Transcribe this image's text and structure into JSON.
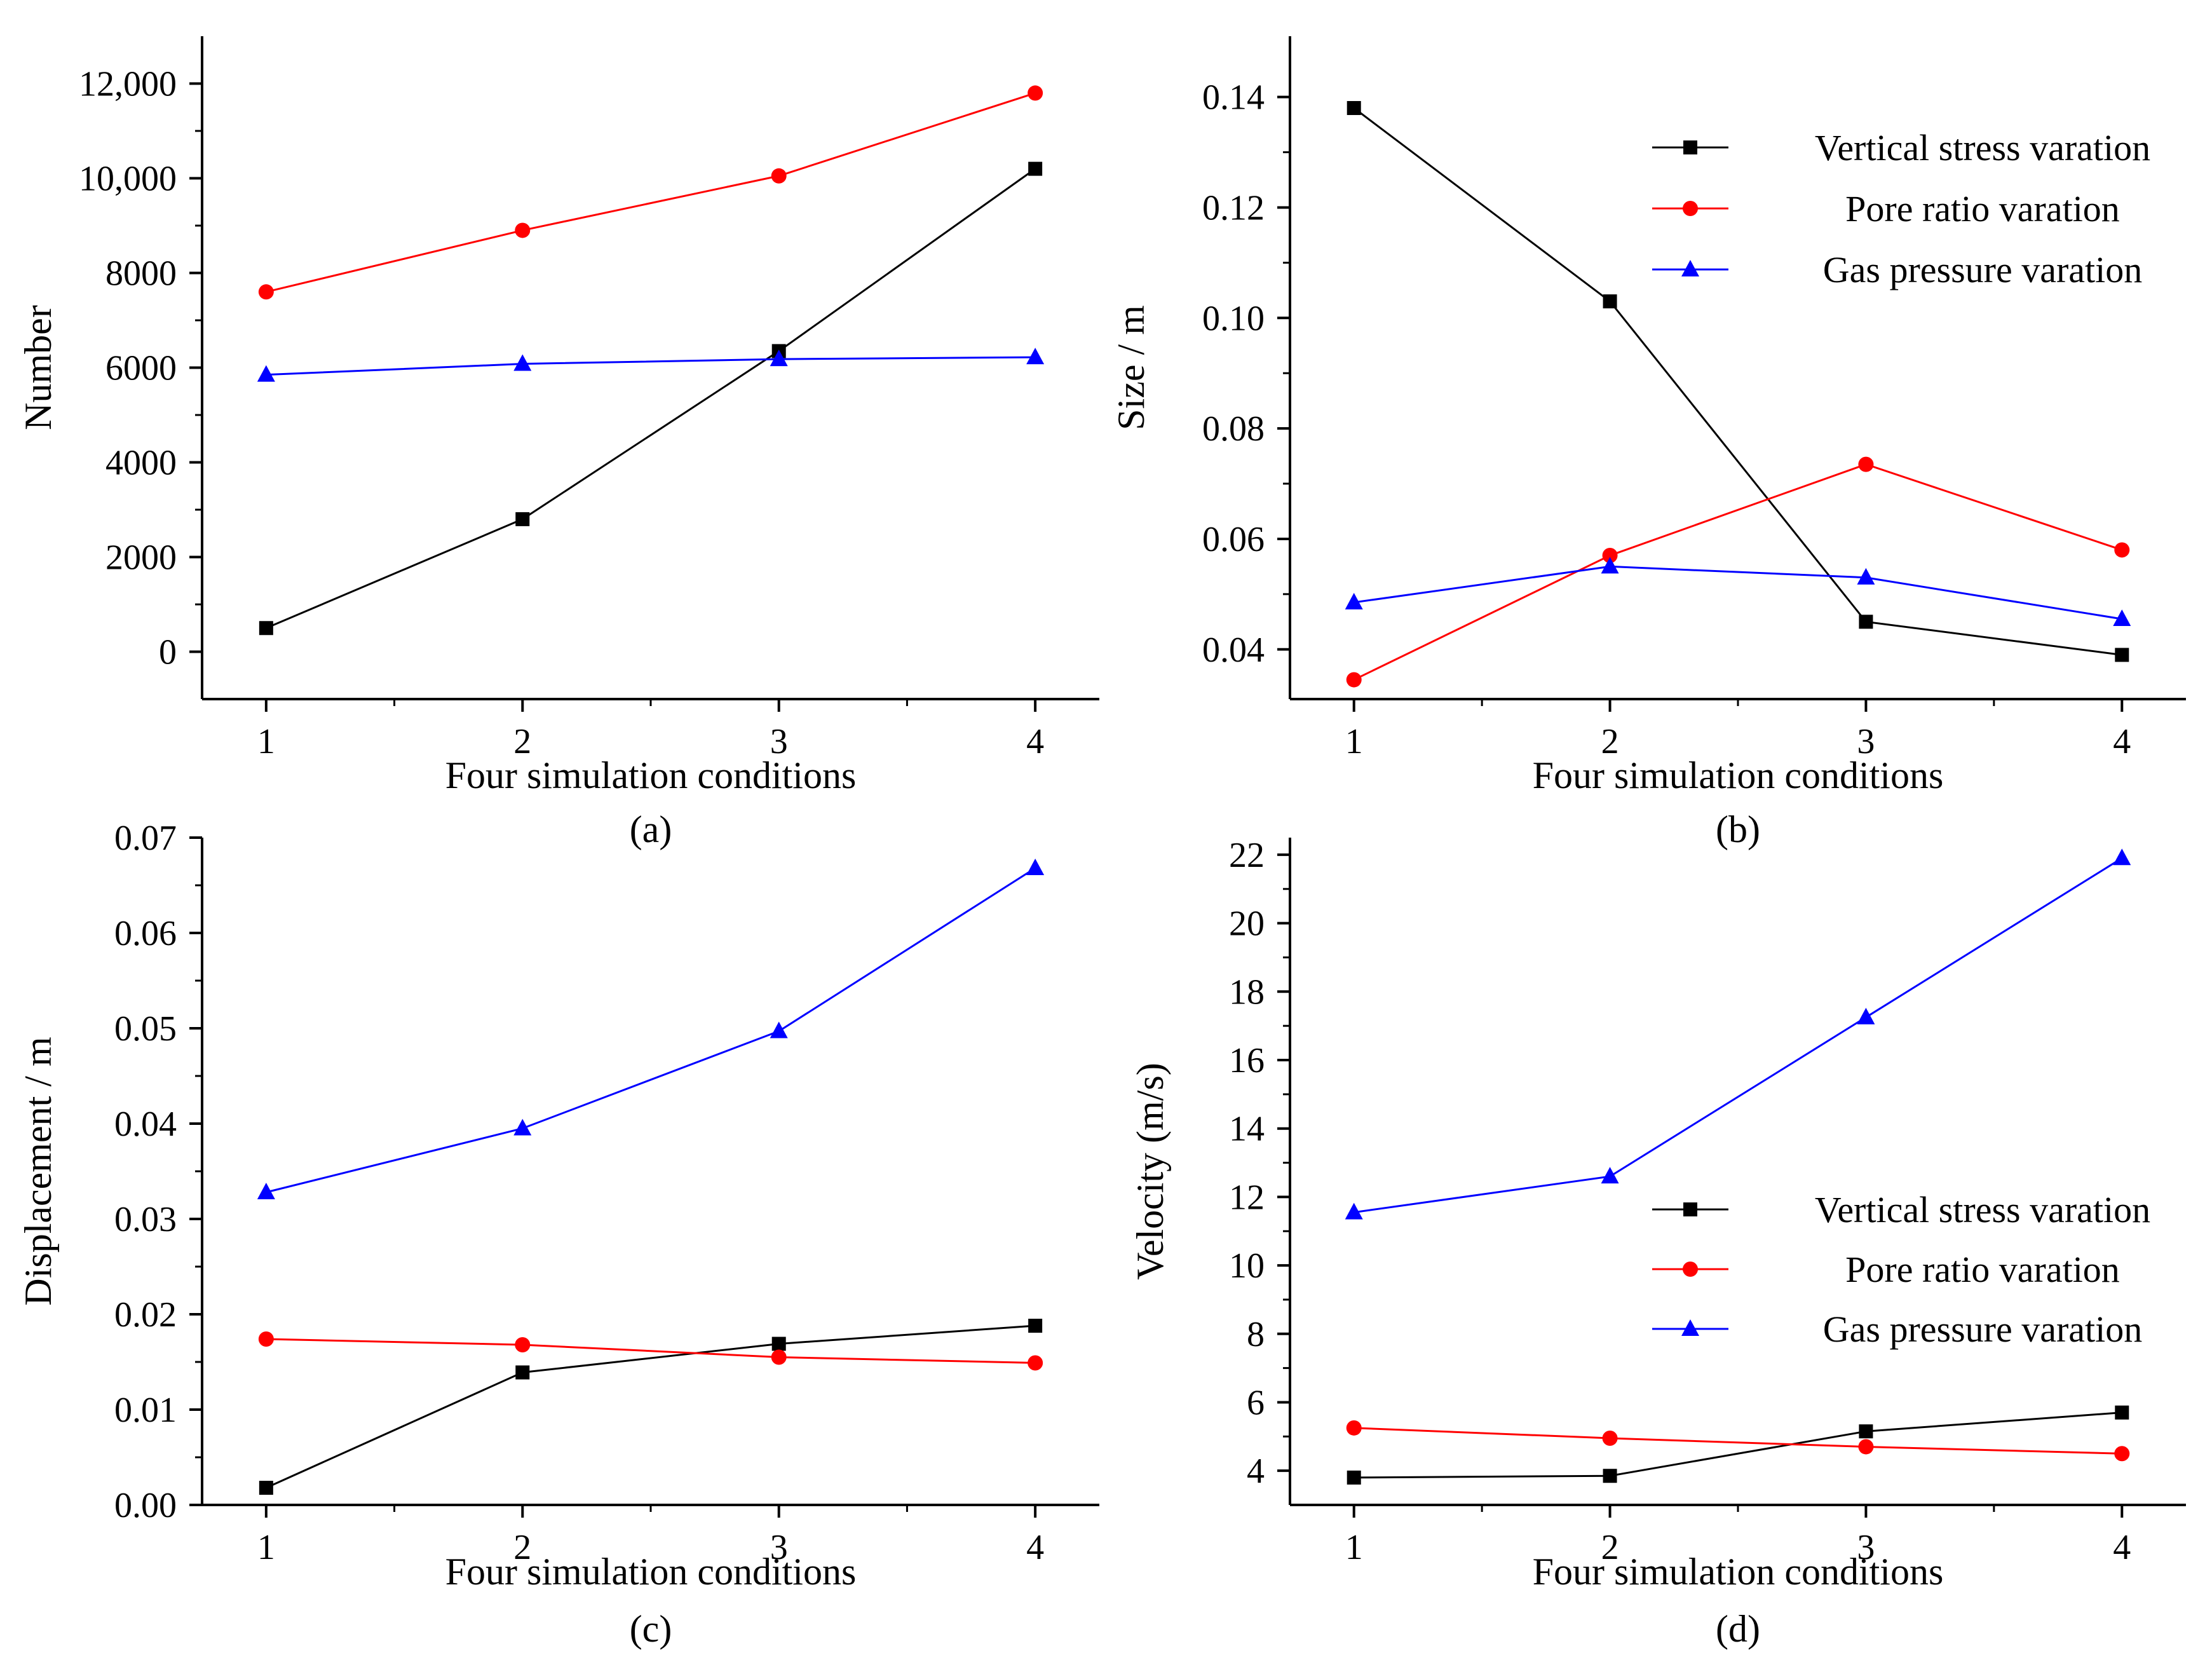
{
  "colors": {
    "series": [
      "#000000",
      "#ff0000",
      "#0000ff"
    ],
    "axis": "#000000",
    "background": "#ffffff"
  },
  "chart_data": [
    {
      "id": "a",
      "type": "line",
      "panel_label": "(a)",
      "title": "",
      "xlabel": "Four simulation conditions",
      "ylabel": "Number",
      "x": [
        1,
        2,
        3,
        4
      ],
      "xticks": [
        "1",
        "2",
        "3",
        "4"
      ],
      "xlim": [
        0.75,
        4.25
      ],
      "ylim": [
        -1000,
        13000
      ],
      "yticks": [
        0,
        2000,
        4000,
        6000,
        8000,
        10000,
        12000
      ],
      "ytick_labels": [
        "0",
        "2000",
        "4000",
        "6000",
        "8000",
        "10,000",
        "12,000"
      ],
      "grid": false,
      "legend": null,
      "series": [
        {
          "marker": "square",
          "color": "#000000",
          "values": [
            500,
            2800,
            6350,
            10200
          ]
        },
        {
          "marker": "circle",
          "color": "#ff0000",
          "values": [
            7600,
            8900,
            10050,
            11800
          ]
        },
        {
          "marker": "triangle",
          "color": "#0000ff",
          "values": [
            5850,
            6080,
            6180,
            6220
          ]
        }
      ]
    },
    {
      "id": "b",
      "type": "line",
      "panel_label": "(b)",
      "title": "",
      "xlabel": "Four simulation conditions",
      "ylabel": "Size / m",
      "x": [
        1,
        2,
        3,
        4
      ],
      "xticks": [
        "1",
        "2",
        "3",
        "4"
      ],
      "xlim": [
        0.75,
        4.25
      ],
      "ylim": [
        0.031,
        0.151
      ],
      "yticks": [
        0.04,
        0.06,
        0.08,
        0.1,
        0.12,
        0.14
      ],
      "ytick_labels": [
        "0.04",
        "0.06",
        "0.08",
        "0.10",
        "0.12",
        "0.14"
      ],
      "grid": false,
      "legend": "top-right",
      "series": [
        {
          "name": "Vertical stress varation",
          "marker": "square",
          "color": "#000000",
          "values": [
            0.138,
            0.103,
            0.045,
            0.039
          ]
        },
        {
          "name": "Pore ratio varation",
          "marker": "circle",
          "color": "#ff0000",
          "values": [
            0.0345,
            0.057,
            0.0735,
            0.058
          ]
        },
        {
          "name": "Gas pressure varation",
          "marker": "triangle",
          "color": "#0000ff",
          "values": [
            0.0485,
            0.055,
            0.053,
            0.0455
          ]
        }
      ]
    },
    {
      "id": "c",
      "type": "line",
      "panel_label": "(c)",
      "title": "",
      "xlabel": "Four simulation conditions",
      "ylabel": "Displacement / m",
      "x": [
        1,
        2,
        3,
        4
      ],
      "xticks": [
        "1",
        "2",
        "3",
        "4"
      ],
      "xlim": [
        0.75,
        4.25
      ],
      "ylim": [
        0,
        0.07
      ],
      "yticks": [
        0.0,
        0.01,
        0.02,
        0.03,
        0.04,
        0.05,
        0.06,
        0.07
      ],
      "ytick_labels": [
        "0.00",
        "0.01",
        "0.02",
        "0.03",
        "0.04",
        "0.05",
        "0.06",
        "0.07"
      ],
      "grid": false,
      "legend": null,
      "series": [
        {
          "marker": "square",
          "color": "#000000",
          "values": [
            0.0018,
            0.0139,
            0.0169,
            0.0188
          ]
        },
        {
          "marker": "circle",
          "color": "#ff0000",
          "values": [
            0.0174,
            0.0168,
            0.0155,
            0.0149
          ]
        },
        {
          "marker": "triangle",
          "color": "#0000ff",
          "values": [
            0.0328,
            0.0395,
            0.0497,
            0.0668
          ]
        }
      ]
    },
    {
      "id": "d",
      "type": "line",
      "panel_label": "(d)",
      "title": "",
      "xlabel": "Four simulation conditions",
      "ylabel": "Velocity (m/s)",
      "x": [
        1,
        2,
        3,
        4
      ],
      "xticks": [
        "1",
        "2",
        "3",
        "4"
      ],
      "xlim": [
        0.75,
        4.25
      ],
      "ylim": [
        3,
        22.5
      ],
      "yticks": [
        4,
        6,
        8,
        10,
        12,
        14,
        16,
        18,
        20,
        22
      ],
      "ytick_labels": [
        "4",
        "6",
        "8",
        "10",
        "12",
        "14",
        "16",
        "18",
        "20",
        "22"
      ],
      "grid": false,
      "legend": "bottom-right",
      "series": [
        {
          "name": "Vertical stress varation",
          "marker": "square",
          "color": "#000000",
          "values": [
            3.8,
            3.85,
            5.15,
            5.7
          ]
        },
        {
          "name": "Pore ratio varation",
          "marker": "circle",
          "color": "#ff0000",
          "values": [
            5.25,
            4.95,
            4.7,
            4.5
          ]
        },
        {
          "name": "Gas pressure varation",
          "marker": "triangle",
          "color": "#0000ff",
          "values": [
            11.55,
            12.6,
            17.25,
            21.9
          ]
        }
      ]
    }
  ]
}
